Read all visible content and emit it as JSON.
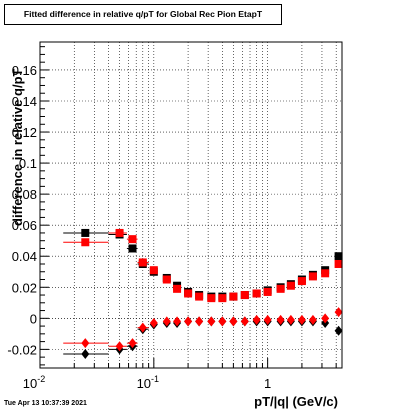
{
  "title": "Fitted difference in relative q/pT for Global Rec Pion EtapT",
  "timestamp": "Tue Apr 13 10:37:39 2021",
  "chart_data": {
    "type": "scatter",
    "title": "Fitted difference in relative q/pT for Global Rec Pion EtapT",
    "xlabel": "pT/|q| (GeV/c)",
    "ylabel": "difference in relative q/pT",
    "xscale": "log",
    "xlim": [
      0.01,
      4.5
    ],
    "ylim": [
      -0.032,
      0.178
    ],
    "grid": true,
    "xticks": [
      "10^-2",
      "10^-1",
      "1"
    ],
    "yticks": [
      "-0.02",
      "0",
      "0.02",
      "0.04",
      "0.06",
      "0.08",
      "0.1",
      "0.12",
      "0.14",
      "0.16"
    ],
    "series": [
      {
        "color": "#000000",
        "marker": "square",
        "x": [
          0.025,
          0.05,
          0.065,
          0.08,
          0.1,
          0.13,
          0.16,
          0.2,
          0.25,
          0.32,
          0.4,
          0.5,
          0.63,
          0.8,
          1.0,
          1.3,
          1.6,
          2.0,
          2.5,
          3.2,
          4.2
        ],
        "y": [
          0.055,
          0.054,
          0.045,
          0.035,
          0.03,
          0.026,
          0.021,
          0.017,
          0.015,
          0.014,
          0.014,
          0.014,
          0.015,
          0.016,
          0.018,
          0.02,
          0.022,
          0.025,
          0.028,
          0.031,
          0.04
        ]
      },
      {
        "color": "#ff0000",
        "marker": "square",
        "x": [
          0.025,
          0.05,
          0.065,
          0.08,
          0.1,
          0.13,
          0.16,
          0.2,
          0.25,
          0.32,
          0.4,
          0.5,
          0.63,
          0.8,
          1.0,
          1.3,
          1.6,
          2.0,
          2.5,
          3.2,
          4.2
        ],
        "y": [
          0.049,
          0.055,
          0.051,
          0.036,
          0.031,
          0.025,
          0.019,
          0.016,
          0.014,
          0.013,
          0.013,
          0.014,
          0.015,
          0.016,
          0.017,
          0.019,
          0.021,
          0.024,
          0.027,
          0.029,
          0.035
        ]
      },
      {
        "color": "#000000",
        "marker": "diamond",
        "x": [
          0.025,
          0.05,
          0.065,
          0.08,
          0.1,
          0.13,
          0.16,
          0.2,
          0.25,
          0.32,
          0.4,
          0.5,
          0.63,
          0.8,
          1.0,
          1.3,
          1.6,
          2.0,
          2.5,
          3.2,
          4.2
        ],
        "y": [
          -0.023,
          -0.02,
          -0.018,
          -0.007,
          -0.004,
          -0.003,
          -0.003,
          -0.002,
          -0.002,
          -0.002,
          -0.002,
          -0.002,
          -0.002,
          -0.002,
          -0.002,
          -0.002,
          -0.002,
          -0.002,
          -0.002,
          -0.003,
          -0.008
        ]
      },
      {
        "color": "#ff0000",
        "marker": "diamond",
        "x": [
          0.025,
          0.05,
          0.065,
          0.08,
          0.1,
          0.13,
          0.16,
          0.2,
          0.25,
          0.32,
          0.4,
          0.5,
          0.63,
          0.8,
          1.0,
          1.3,
          1.6,
          2.0,
          2.5,
          3.2,
          4.2
        ],
        "y": [
          -0.016,
          -0.018,
          -0.016,
          -0.006,
          -0.003,
          -0.002,
          -0.002,
          -0.002,
          -0.002,
          -0.002,
          -0.002,
          -0.002,
          -0.002,
          -0.001,
          -0.001,
          -0.001,
          -0.001,
          -0.001,
          -0.001,
          0.0,
          0.004
        ]
      }
    ]
  }
}
